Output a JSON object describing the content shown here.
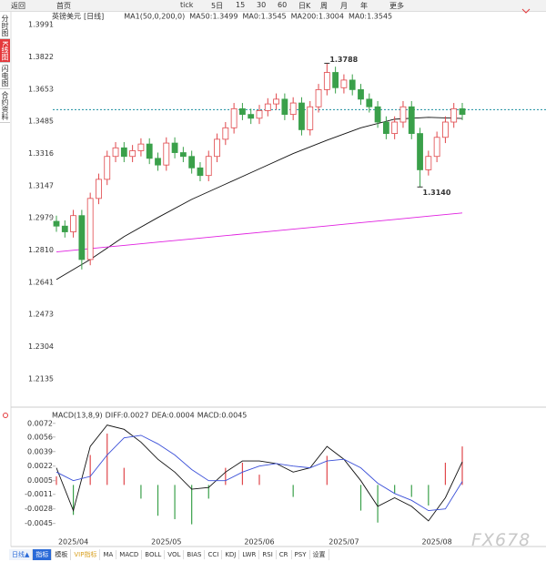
{
  "toolbar": {
    "items": [
      "返回",
      "首页",
      "tick",
      "5日",
      "15",
      "30",
      "60",
      "日K",
      "周",
      "月",
      "年",
      "更多"
    ]
  },
  "side_tabs": [
    "分时图",
    "K线图",
    "闪电图",
    "合约资料"
  ],
  "bottom_tabs": {
    "period": "日线▲",
    "items": [
      "指标",
      "模板",
      "VIP指标",
      "MA",
      "MACD",
      "BOLL",
      "VOL",
      "BIAS",
      "CCI",
      "KDJ",
      "LWR",
      "RSI",
      "CR",
      "PSY",
      "设置"
    ]
  },
  "watermark": "FX678",
  "chart_data": [
    {
      "type": "candlestick",
      "symbol": "英镑美元",
      "period": "[日线]",
      "legend": [
        {
          "text": "MA1(50,0,200,0)",
          "color": "#333333"
        },
        {
          "text": "MA50:1.3499",
          "color": "#222222"
        },
        {
          "text": "MA0:1.3545",
          "color": "#3a6fd8"
        },
        {
          "text": "MA200:1.3004",
          "color": "#e020e0"
        },
        {
          "text": "MA0:1.3545",
          "color": "#f0a030"
        }
      ],
      "up_color": "#e0474b",
      "down_color": "#3aa04a",
      "open": [
        1.296,
        1.2935,
        1.2905,
        1.299,
        1.276,
        1.308,
        1.318,
        1.33,
        1.3345,
        1.33,
        1.333,
        1.3365,
        1.329,
        1.3255,
        1.337,
        1.332,
        1.33,
        1.324,
        1.32,
        1.33,
        1.339,
        1.345,
        1.355,
        1.352,
        1.35,
        1.354,
        1.3575,
        1.36,
        1.352,
        1.358,
        1.344,
        1.356,
        1.365,
        1.374,
        1.366,
        1.37,
        1.365,
        1.36,
        1.356,
        1.348,
        1.342,
        1.348,
        1.356,
        1.342,
        1.323,
        1.33,
        1.34,
        1.348,
        1.355
      ],
      "high": [
        1.299,
        1.2965,
        1.302,
        1.302,
        1.311,
        1.321,
        1.333,
        1.3375,
        1.3375,
        1.336,
        1.3395,
        1.3395,
        1.332,
        1.34,
        1.34,
        1.335,
        1.333,
        1.327,
        1.333,
        1.342,
        1.348,
        1.358,
        1.358,
        1.355,
        1.357,
        1.3605,
        1.363,
        1.363,
        1.361,
        1.361,
        1.359,
        1.368,
        1.3788,
        1.377,
        1.373,
        1.373,
        1.368,
        1.363,
        1.359,
        1.351,
        1.351,
        1.359,
        1.359,
        1.345,
        1.333,
        1.343,
        1.351,
        1.358,
        1.358
      ],
      "low": [
        1.2905,
        1.2875,
        1.2875,
        1.2708,
        1.273,
        1.305,
        1.315,
        1.327,
        1.327,
        1.327,
        1.33,
        1.326,
        1.3225,
        1.3225,
        1.329,
        1.327,
        1.321,
        1.317,
        1.317,
        1.327,
        1.336,
        1.342,
        1.349,
        1.347,
        1.347,
        1.351,
        1.3545,
        1.349,
        1.349,
        1.341,
        1.341,
        1.353,
        1.362,
        1.363,
        1.363,
        1.362,
        1.357,
        1.353,
        1.345,
        1.339,
        1.339,
        1.345,
        1.339,
        1.314,
        1.32,
        1.327,
        1.337,
        1.345,
        1.349
      ],
      "close": [
        1.2935,
        1.2905,
        1.299,
        1.276,
        1.308,
        1.318,
        1.33,
        1.3345,
        1.33,
        1.333,
        1.3365,
        1.329,
        1.3255,
        1.337,
        1.332,
        1.33,
        1.324,
        1.32,
        1.33,
        1.339,
        1.345,
        1.355,
        1.352,
        1.35,
        1.354,
        1.3575,
        1.36,
        1.352,
        1.358,
        1.344,
        1.356,
        1.365,
        1.374,
        1.366,
        1.37,
        1.365,
        1.36,
        1.356,
        1.348,
        1.342,
        1.348,
        1.356,
        1.342,
        1.323,
        1.33,
        1.34,
        1.348,
        1.355,
        1.352
      ],
      "series": [
        {
          "color": "#111111",
          "x": [
            0,
            4,
            8,
            12,
            16,
            20,
            24,
            28,
            32,
            36,
            40,
            44,
            48
          ],
          "values": [
            1.2655,
            1.276,
            1.288,
            1.298,
            1.3075,
            1.3155,
            1.3235,
            1.3315,
            1.3385,
            1.345,
            1.3495,
            1.3505,
            1.3499
          ]
        },
        {
          "color": "#e020e0",
          "x": [
            0,
            4,
            8,
            12,
            16,
            20,
            24,
            28,
            32,
            36,
            40,
            44,
            48
          ],
          "values": [
            1.28,
            1.2817,
            1.2834,
            1.2851,
            1.2868,
            1.2885,
            1.2902,
            1.2919,
            1.2936,
            1.2953,
            1.297,
            1.2987,
            1.3004
          ]
        }
      ],
      "hline": {
        "value": 1.3545,
        "color": "#1a8fa0"
      },
      "annotations": [
        {
          "index": 32,
          "value": 1.3788,
          "label": "1.3788",
          "color": "#d23c3c"
        },
        {
          "index": 43,
          "value": 1.314,
          "label": "1.3140",
          "color": "#3aa04a"
        }
      ],
      "ylim": [
        1.202,
        1.4024
      ],
      "yticks": [
        {
          "value": 1.3991,
          "label": "1.3991"
        },
        {
          "value": 1.3822,
          "label": "1.3822"
        },
        {
          "value": 1.3653,
          "label": "1.3653"
        },
        {
          "value": 1.3485,
          "label": "1.3485"
        },
        {
          "value": 1.3316,
          "label": "1.3316"
        },
        {
          "value": 1.3147,
          "label": "1.3147"
        },
        {
          "value": 1.2979,
          "label": "1.2979"
        },
        {
          "value": 1.281,
          "label": "1.2810"
        },
        {
          "value": 1.2641,
          "label": "1.2641"
        },
        {
          "value": 1.2473,
          "label": "1.2473"
        },
        {
          "value": 1.2304,
          "label": "1.2304"
        },
        {
          "value": 1.2135,
          "label": "1.2135"
        }
      ]
    },
    {
      "type": "macd",
      "title": "MACD(13,8,9)",
      "legend": [
        {
          "text": "DIFF:0.0027",
          "color": "#222222"
        },
        {
          "text": "DEA:0.0004",
          "color": "#3a4fd8"
        },
        {
          "text": "MACD:0.0045",
          "color": "#e020e0"
        }
      ],
      "categories": [
        null,
        null,
        "2025/04",
        null,
        null,
        null,
        null,
        null,
        null,
        null,
        null,
        null,
        null,
        "2025/05",
        null,
        null,
        null,
        null,
        null,
        null,
        null,
        null,
        null,
        null,
        "2025/06",
        null,
        null,
        null,
        null,
        null,
        null,
        null,
        null,
        null,
        "2025/07",
        null,
        null,
        null,
        null,
        null,
        null,
        null,
        null,
        null,
        null,
        "2025/08",
        null,
        null,
        null
      ],
      "x": [
        0,
        2,
        4,
        6,
        8,
        10,
        12,
        14,
        16,
        18,
        20,
        22,
        24,
        26,
        28,
        30,
        32,
        34,
        36,
        38,
        40,
        42,
        44,
        46,
        48
      ],
      "series": [
        {
          "color": "#111111",
          "values": [
            0.002,
            -0.003,
            0.0045,
            0.007,
            0.0065,
            0.005,
            0.003,
            0.0015,
            -0.0005,
            -0.0003,
            0.0015,
            0.0028,
            0.0028,
            0.0025,
            0.0015,
            0.002,
            0.0045,
            0.003,
            0.0005,
            -0.0025,
            -0.0015,
            -0.0025,
            -0.0042,
            -0.0015,
            0.0027
          ]
        },
        {
          "color": "#3a4fd8",
          "values": [
            0.0015,
            0.0005,
            0.001,
            0.0035,
            0.0055,
            0.0058,
            0.0048,
            0.0035,
            0.0018,
            0.0005,
            0.0005,
            0.0015,
            0.0022,
            0.0025,
            0.0022,
            0.002,
            0.0028,
            0.003,
            0.002,
            0.0002,
            -0.001,
            -0.0018,
            -0.003,
            -0.0028,
            0.0004
          ]
        }
      ],
      "histogram": {
        "up_color": "#e0474b",
        "down_color": "#3aa04a",
        "values": [
          0.001,
          -0.0035,
          0.0035,
          0.006,
          0.002,
          -0.0016,
          -0.0036,
          -0.004,
          -0.0046,
          -0.0016,
          0.002,
          0.0026,
          0.0012,
          0,
          -0.0014,
          0,
          0.0034,
          0,
          -0.003,
          -0.0044,
          -0.001,
          -0.0014,
          -0.0024,
          0.0026,
          0.0045
        ]
      },
      "ylim": [
        -0.0056,
        0.0076
      ],
      "yticks": [
        0.0072,
        0.0056,
        0.0039,
        0.0022,
        0.0005,
        -0.0011,
        -0.0028,
        -0.0045
      ]
    }
  ]
}
